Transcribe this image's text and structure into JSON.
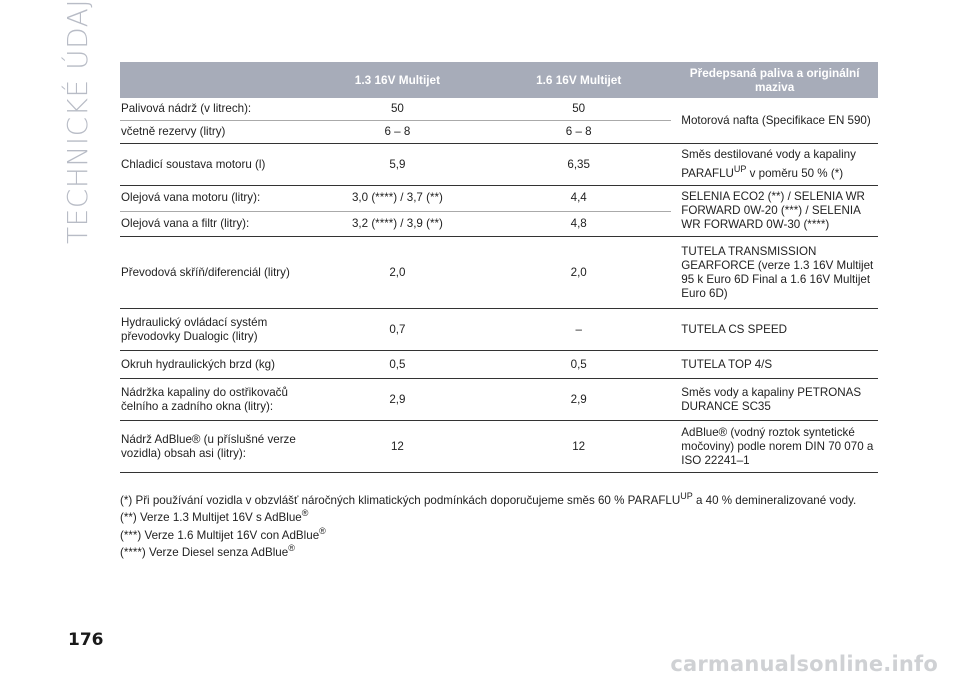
{
  "side_title": "TECHNICKÉ ÚDAJE",
  "page_number": "176",
  "watermark": "carmanualsonline.info",
  "table": {
    "headers": [
      "",
      "1.3 16V Multijet",
      "1.6 16V Multijet",
      "Předepsaná paliva a originální maziva"
    ],
    "rows": [
      {
        "label": "Palivová nádrž (v litrech):",
        "v13": "50",
        "v16": "50"
      },
      {
        "label": "včetně rezervy (litry)",
        "v13": "6 – 8",
        "v16": "6 – 8"
      },
      {
        "label": "Chladicí soustava motoru (l)",
        "v13": "5,9",
        "v16": "6,35"
      },
      {
        "label": "Olejová vana motoru (litry):",
        "v13": "3,0 (****) / 3,7 (**)",
        "v16": "4,4"
      },
      {
        "label": "Olejová vana a filtr (litry):",
        "v13": "3,2 (****) / 3,9 (**)",
        "v16": "4,8"
      },
      {
        "label": "Převodová skříň/diferenciál (litry)",
        "v13": "2,0",
        "v16": "2,0",
        "product": "TUTELA TRANSMISSION GEARFORCE (verze 1.3 16V Multijet 95 k Euro 6D Final a 1.6 16V Multijet Euro 6D)"
      },
      {
        "label": "Hydraulický ovládací systém převodovky Dualogic (litry)",
        "v13": "0,7",
        "v16": "–",
        "product": "TUTELA CS SPEED"
      },
      {
        "label": "Okruh hydraulických brzd (kg)",
        "v13": "0,5",
        "v16": "0,5",
        "product": "TUTELA TOP 4/S"
      },
      {
        "label": "Nádržka kapaliny do ostřikovačů čelního a zadního okna (litry):",
        "v13": "2,9",
        "v16": "2,9",
        "product": "Směs vody a kapaliny PETRONAS DURANCE SC35"
      },
      {
        "label": "Nádrž AdBlue® (u příslušné verze vozidla) obsah asi (litry):",
        "v13": "12",
        "v16": "12",
        "product": "AdBlue® (vodný roztok syntetické močoviny) podle norem DIN 70 070 a ISO 22241–1"
      }
    ],
    "fuel_product": "Motorová nafta (Specifikace EN 590)",
    "coolant_product_pre": "Směs destilované vody a kapaliny PARAFLU",
    "coolant_product_sup": "UP",
    "coolant_product_post": " v poměru 50 % (*)",
    "oil_product": "SELENIA ECO2 (**) / SELENIA WR FORWARD 0W-20 (***) / SELENIA WR FORWARD 0W-30 (****)"
  },
  "notes": {
    "n1_pre": "(*) Při používání vozidla v obzvlášť náročných klimatických podmínkách doporučujeme směs 60 % PARAFLU",
    "n1_sup": "UP",
    "n1_post": " a 40 % demineralizované vody.",
    "n2": "(**) Verze 1.3 Multijet 16V s AdBlue",
    "n3": "(***) Verze 1.6 Multijet 16V con AdBlue",
    "n4": "(****) Verze Diesel senza AdBlue",
    "reg": "®"
  }
}
